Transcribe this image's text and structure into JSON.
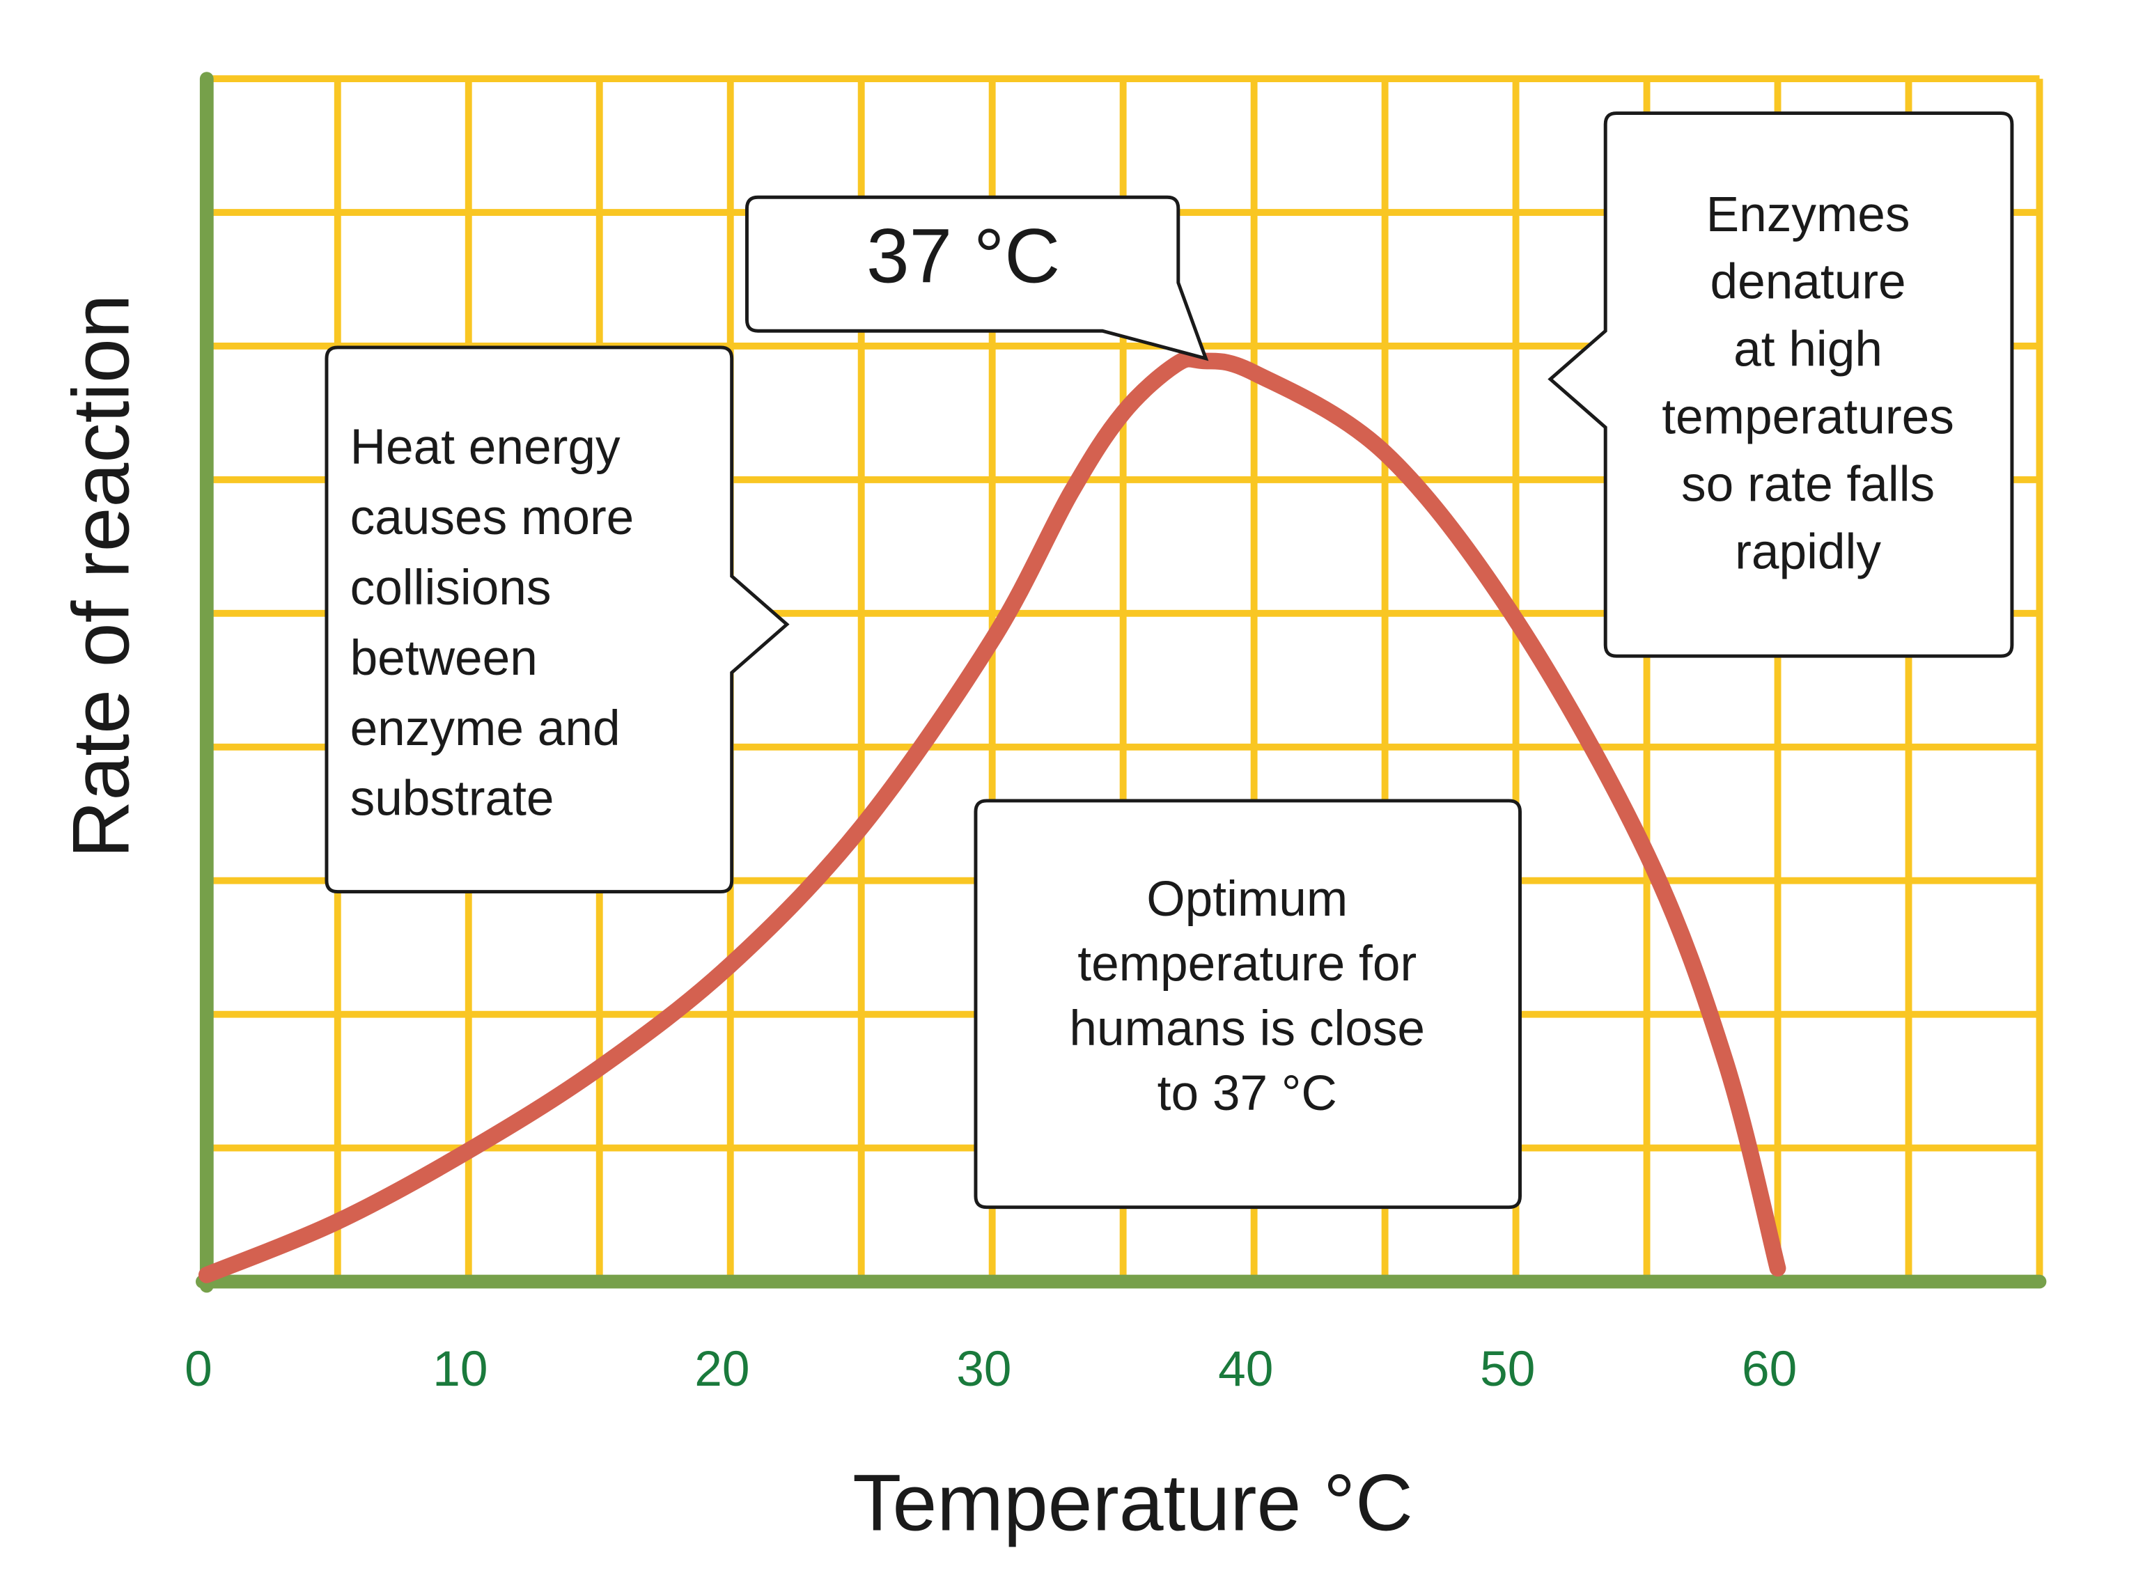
{
  "chart_data": {
    "type": "line",
    "xlabel": "Temperature °C",
    "ylabel": "Rate of reaction",
    "x": [
      0,
      5,
      10,
      15,
      20,
      25,
      30,
      33,
      35,
      37,
      38,
      40,
      45,
      50,
      55,
      58,
      60
    ],
    "series": [
      {
        "color": "#d46150",
        "values": [
          0.05,
          0.45,
          0.98,
          1.6,
          2.37,
          3.4,
          4.8,
          5.9,
          6.5,
          6.86,
          6.89,
          6.8,
          6.2,
          4.95,
          3.2,
          1.65,
          0.1
        ]
      }
    ],
    "xlim": [
      0,
      70
    ],
    "ylim": [
      0,
      9
    ],
    "xticks": [
      0,
      10,
      20,
      30,
      40,
      50,
      60
    ],
    "xgrid": [
      0,
      5,
      10,
      15,
      20,
      25,
      30,
      35,
      40,
      45,
      50,
      55,
      60,
      65,
      70
    ],
    "ygrid": [
      1,
      2,
      3,
      4,
      5,
      6,
      7,
      8,
      9
    ],
    "grid_color": "#f9c623",
    "axis_color": "#76a04a",
    "tick_color": "#1a7a3c",
    "annotations": [
      {
        "lines": [
          "Heat energy",
          "causes more",
          "collisions",
          "between",
          "enzyme and",
          "substrate"
        ]
      },
      {
        "lines": [
          "37 °C"
        ]
      },
      {
        "lines": [
          "Enzymes",
          "denature",
          "at high",
          "temperatures",
          "so rate falls",
          "rapidly"
        ]
      },
      {
        "lines": [
          "Optimum",
          "temperature for",
          "humans is close",
          "to 37 °C"
        ]
      }
    ]
  }
}
